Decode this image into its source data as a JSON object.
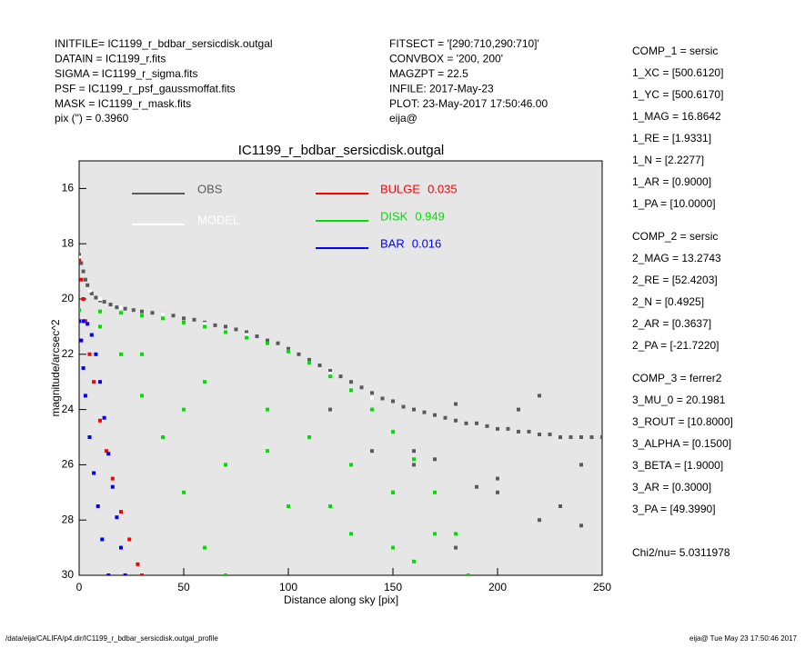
{
  "header": {
    "left": [
      "INITFILE= IC1199_r_bdbar_sersicdisk.outgal",
      "DATAIN  = IC1199_r.fits",
      "SIGMA   = IC1199_r_sigma.fits",
      "PSF     = IC1199_r_psf_gaussmoffat.fits",
      "MASK    = IC1199_r_mask.fits",
      "pix (\") =  0.3960"
    ],
    "middle": [
      "FITSECT = '[290:710,290:710]'",
      "CONVBOX = '200, 200'",
      "MAGZPT  =              22.5",
      "INFILE: 2017-May-23",
      "PLOT: 23-May-2017 17:50:46.00",
      "eija@"
    ]
  },
  "params": [
    [
      "COMP_1  = sersic",
      "1_XC    = [500.6120]",
      "1_YC    = [500.6170]",
      "1_MAG   = 16.8642",
      "1_RE    = [1.9331]",
      "1_N     = [2.2277]",
      "1_AR    = [0.9000]",
      "1_PA    = [10.0000]"
    ],
    [
      "COMP_2  = sersic",
      "2_MAG   = 13.2743",
      "2_RE    = [52.4203]",
      "2_N     = [0.4925]",
      "2_AR    = [0.3637]",
      "2_PA    = [-21.7220]"
    ],
    [
      "COMP_3  = ferrer2",
      "3_MU_0  = 20.1981",
      "3_ROUT  = [10.8000]",
      "3_ALPHA = [0.1500]",
      "3_BETA  = [1.9000]",
      "3_AR    = [0.3000]",
      "3_PA    = [49.3990]"
    ],
    [
      "Chi2/nu=      5.0311978"
    ]
  ],
  "footer": {
    "left": "/data/eija/CALIFA/p4.dir/IC1199_r_bdbar_sersicdisk.outgal_profile",
    "right": "eija@  Tue May 23 17:50:46 2017"
  },
  "chart_data": {
    "type": "scatter",
    "title": "IC1199_r_bdbar_sersicdisk.outgal",
    "x_label": "Distance along sky [pix]",
    "y_label": "magnitude/arcsec^2",
    "xlim": [
      0,
      250
    ],
    "ylim": [
      30,
      15
    ],
    "xticks": [
      0,
      50,
      100,
      150,
      200,
      250
    ],
    "yticks": [
      16,
      18,
      20,
      22,
      24,
      26,
      28,
      30
    ],
    "background": "#e6e6e6",
    "series": [
      {
        "name": "OBS",
        "color": "#5a5a5a",
        "x": [
          0,
          1,
          2,
          3,
          4,
          5,
          6,
          8,
          10,
          12,
          15,
          18,
          22,
          26,
          30,
          35,
          40,
          45,
          50,
          55,
          60,
          65,
          70,
          75,
          80,
          85,
          90,
          95,
          100,
          105,
          110,
          115,
          120,
          125,
          130,
          135,
          140,
          145,
          150,
          155,
          160,
          165,
          170,
          175,
          180,
          185,
          190,
          195,
          200,
          205,
          210,
          215,
          220,
          225,
          230,
          235,
          240,
          245,
          250,
          120,
          140,
          160,
          180,
          200,
          220,
          240,
          150,
          170,
          190,
          210,
          230,
          160,
          200,
          240,
          180,
          220
        ],
        "values": [
          18.4,
          18.7,
          19.0,
          19.3,
          19.5,
          19.7,
          19.8,
          19.95,
          20.05,
          20.1,
          20.2,
          20.3,
          20.35,
          20.4,
          20.45,
          20.5,
          20.55,
          20.6,
          20.7,
          20.75,
          20.85,
          20.95,
          21.0,
          21.1,
          21.2,
          21.35,
          21.5,
          21.6,
          21.8,
          22.0,
          22.2,
          22.4,
          22.6,
          22.8,
          23.0,
          23.2,
          23.4,
          23.6,
          23.7,
          23.9,
          24.0,
          24.1,
          24.2,
          24.3,
          24.4,
          24.5,
          24.5,
          24.6,
          24.7,
          24.7,
          24.8,
          24.8,
          24.9,
          24.9,
          25.0,
          25.0,
          25.0,
          25.0,
          25.0,
          24.0,
          25.5,
          26.0,
          23.8,
          26.5,
          23.5,
          26.0,
          27.0,
          25.8,
          26.8,
          24.0,
          27.5,
          25.5,
          27.0,
          28.2,
          29.0,
          28.0
        ]
      },
      {
        "name": "MODEL",
        "color": "#ffffff",
        "x": [
          0,
          5,
          10,
          20,
          40,
          60,
          80,
          100,
          120,
          140
        ],
        "values": [
          18.5,
          19.7,
          20.0,
          20.3,
          20.55,
          20.9,
          21.3,
          21.9,
          22.7,
          23.6
        ]
      },
      {
        "name": "BULGE",
        "fraction": 0.035,
        "color": "#ff0000",
        "x": [
          0,
          1,
          2,
          3,
          5,
          7,
          10,
          13,
          16,
          20,
          24,
          28,
          30
        ],
        "values": [
          18.6,
          19.3,
          20.0,
          20.8,
          22.0,
          23.0,
          24.4,
          25.5,
          26.5,
          27.7,
          28.7,
          29.6,
          30.0
        ]
      },
      {
        "name": "DISK",
        "fraction": 0.949,
        "color": "#00e000",
        "x": [
          0,
          10,
          20,
          30,
          40,
          50,
          60,
          70,
          80,
          90,
          100,
          110,
          120,
          130,
          140,
          150,
          160,
          170,
          180,
          186,
          10,
          20,
          30,
          40,
          50,
          60,
          70,
          90,
          110,
          130,
          150,
          170,
          30,
          50,
          70,
          100,
          130,
          160,
          60,
          90,
          120,
          150
        ],
        "values": [
          20.4,
          20.45,
          20.5,
          20.6,
          20.7,
          20.85,
          21.0,
          21.2,
          21.4,
          21.6,
          21.9,
          22.3,
          22.8,
          23.3,
          24.0,
          24.8,
          25.8,
          27.0,
          28.5,
          30.0,
          21.0,
          22.0,
          23.5,
          25.0,
          27.0,
          29.0,
          30.0,
          24.0,
          25.0,
          26.0,
          27.0,
          28.5,
          22.0,
          24.0,
          26.0,
          27.5,
          28.5,
          29.5,
          23.0,
          25.5,
          27.5,
          29.0
        ]
      },
      {
        "name": "BAR",
        "fraction": 0.016,
        "color": "#0000ff",
        "x": [
          0,
          2,
          4,
          6,
          8,
          10,
          12,
          14,
          16,
          18,
          20,
          22,
          1,
          2,
          3,
          5,
          7,
          9,
          11,
          14
        ],
        "values": [
          20.8,
          20.8,
          20.9,
          21.3,
          22.0,
          23.0,
          24.3,
          25.6,
          26.8,
          27.9,
          29.0,
          30.0,
          21.5,
          22.5,
          23.5,
          25.0,
          26.3,
          27.5,
          28.7,
          30.0
        ]
      }
    ]
  }
}
